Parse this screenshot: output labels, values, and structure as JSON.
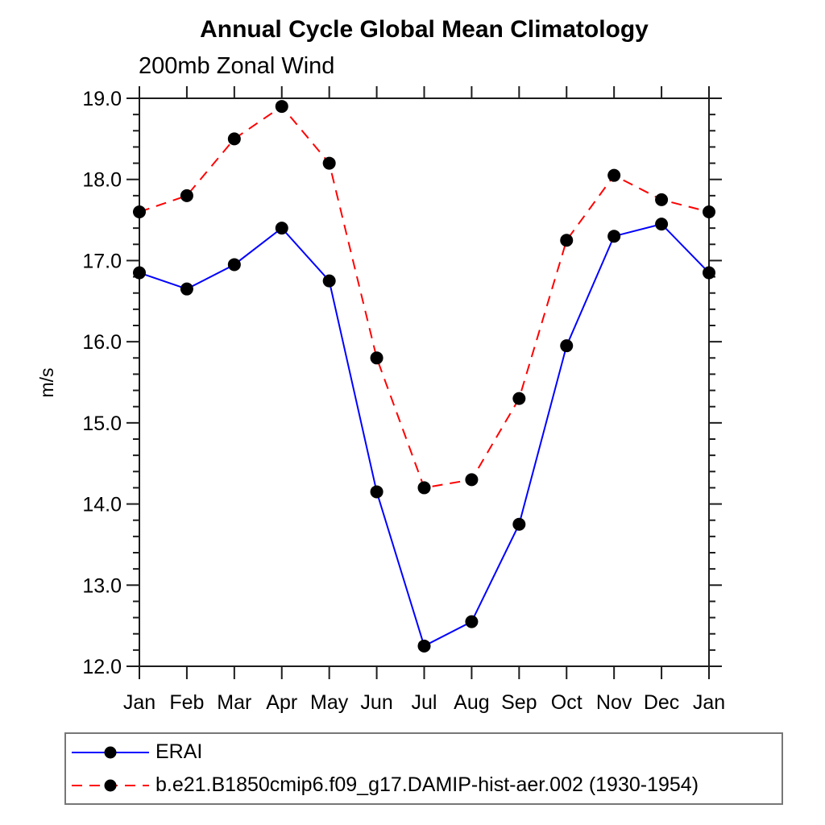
{
  "chart_data": {
    "type": "line",
    "title": "Annual Cycle Global Mean Climatology",
    "subtitle": "200mb Zonal Wind",
    "ylabel": "m/s",
    "xlabel": "",
    "x_labels": [
      "Jan",
      "Feb",
      "Mar",
      "Apr",
      "May",
      "Jun",
      "Jul",
      "Aug",
      "Sep",
      "Oct",
      "Nov",
      "Dec",
      "Jan"
    ],
    "ylim": [
      12.0,
      19.0
    ],
    "y_major_step": 1.0,
    "y_minor_step": 0.2,
    "y_tick_labels": [
      "12.0",
      "13.0",
      "14.0",
      "15.0",
      "16.0",
      "17.0",
      "18.0",
      "19.0"
    ],
    "grid": false,
    "legend_position": "bottom-left-box",
    "frame_color": "#1c1c1c",
    "marker": "filled-circle",
    "marker_color": "#000000",
    "series": [
      {
        "name": "ERAI",
        "color": "#0000ff",
        "line_style": "solid",
        "values": [
          16.85,
          16.65,
          16.95,
          17.4,
          16.75,
          14.15,
          12.25,
          12.55,
          13.75,
          15.95,
          17.3,
          17.45,
          16.85
        ]
      },
      {
        "name": "b.e21.B1850cmip6.f09_g17.DAMIP-hist-aer.002 (1930-1954)",
        "color": "#ff0000",
        "line_style": "dashed",
        "values": [
          17.6,
          17.8,
          18.5,
          18.9,
          18.2,
          15.8,
          14.2,
          14.3,
          15.3,
          17.25,
          18.05,
          17.75,
          17.6
        ]
      }
    ]
  }
}
